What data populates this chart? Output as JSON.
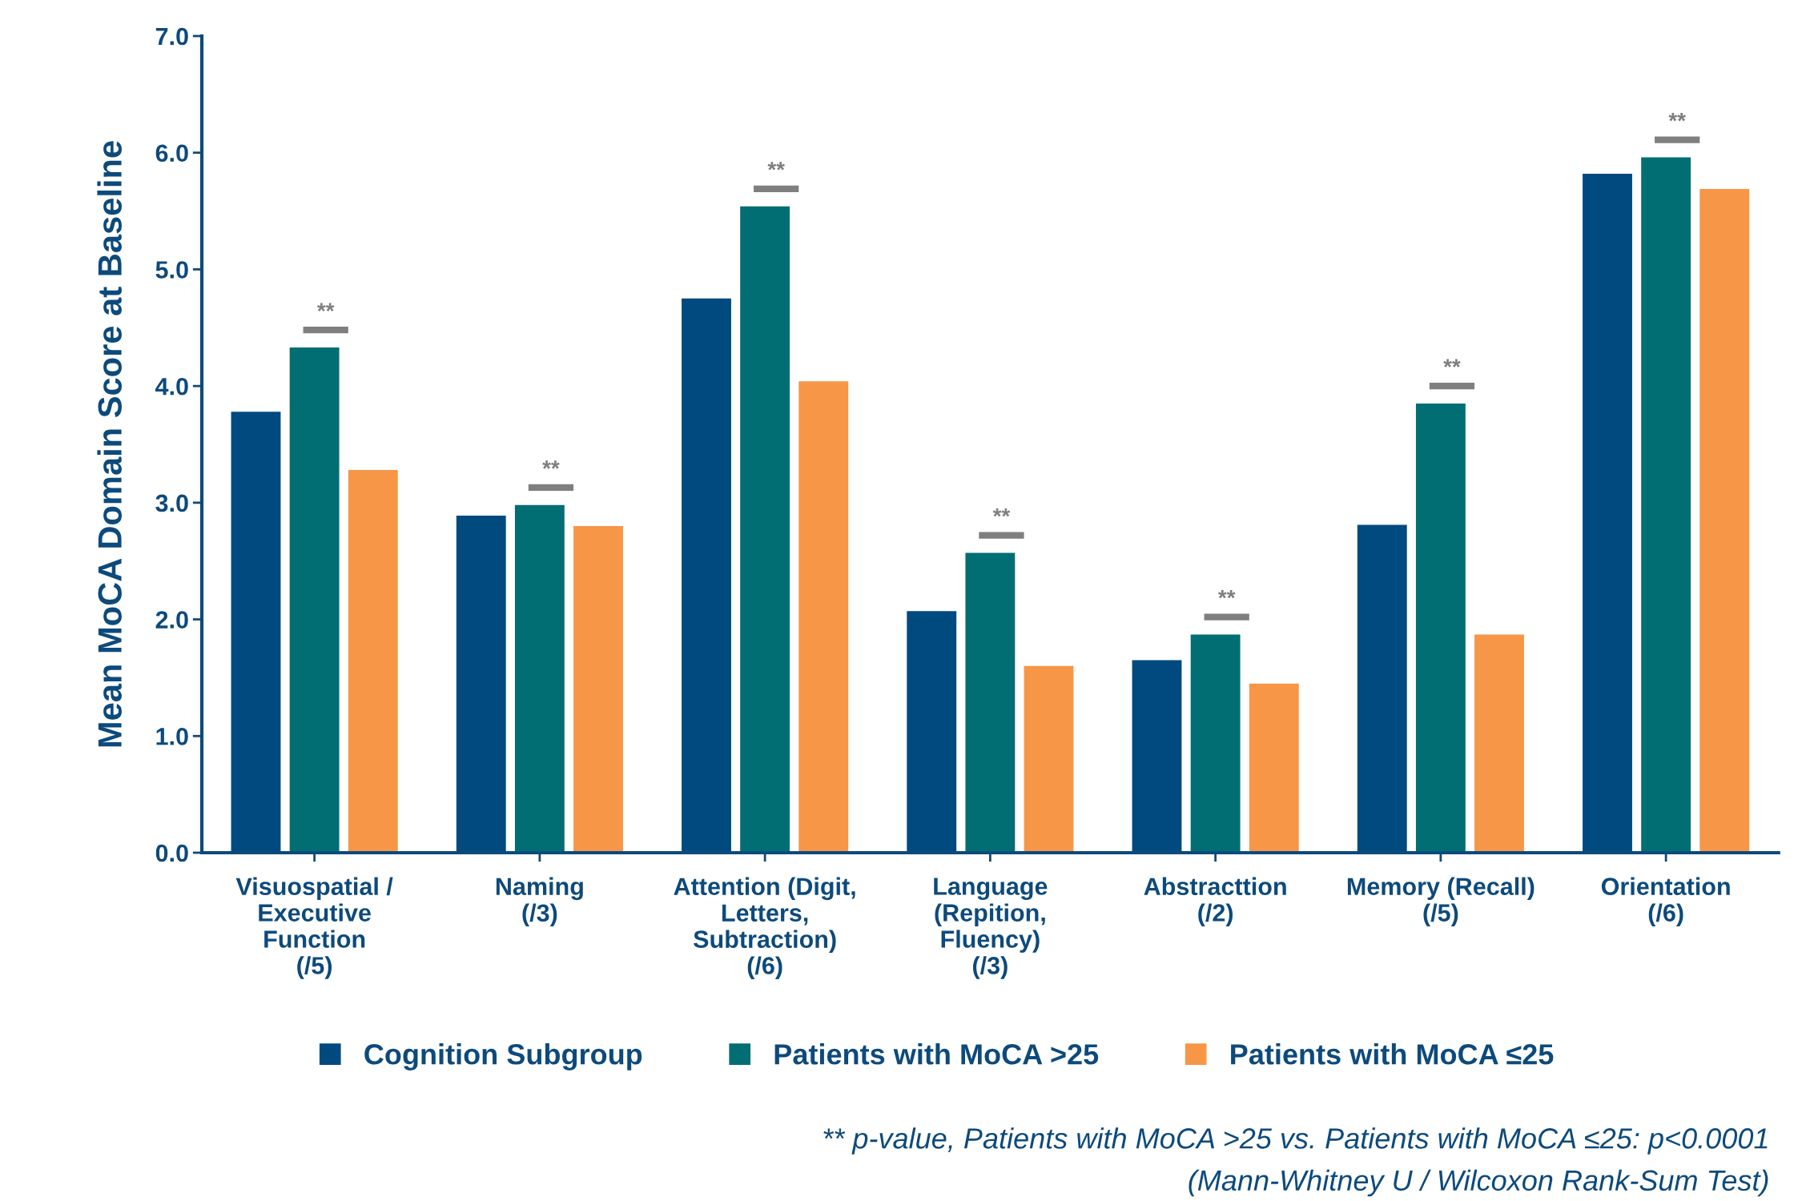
{
  "chart_data": {
    "type": "bar",
    "ylabel": "Mean MoCA Domain Score at Baseline",
    "categories": [
      "Visuospatial /\nExecutive\nFunction\n(/5)",
      "Naming\n(/3)",
      "Attention (Digit,\nLetters,\nSubtraction)\n(/6)",
      "Language\n(Repition,\nFluency)\n(/3)",
      "Abstracttion\n(/2)",
      "Memory (Recall)\n(/5)",
      "Orientation\n(/6)"
    ],
    "series": [
      {
        "name": "Cognition Subgroup",
        "color": "#004a80",
        "values": [
          3.78,
          2.89,
          4.75,
          2.07,
          1.65,
          2.81,
          5.82
        ]
      },
      {
        "name": "Patients with MoCA >25",
        "color": "#006e73",
        "values": [
          4.33,
          2.98,
          5.54,
          2.57,
          1.87,
          3.85,
          5.96
        ]
      },
      {
        "name": "Patients with MoCA ≤25",
        "color": "#f79646",
        "values": [
          3.28,
          2.8,
          4.04,
          1.6,
          1.45,
          1.87,
          5.69
        ]
      }
    ],
    "ylim": [
      0,
      7
    ],
    "yticks": [
      {
        "value": 0,
        "label": "0.0"
      },
      {
        "value": 1,
        "label": "1.0"
      },
      {
        "value": 2,
        "label": "2.0"
      },
      {
        "value": 3,
        "label": "3.0"
      },
      {
        "value": 4,
        "label": "4.0"
      },
      {
        "value": 5,
        "label": "5.0"
      },
      {
        "value": 6,
        "label": "6.0"
      },
      {
        "value": 7,
        "label": "7.0"
      }
    ],
    "grid": false,
    "legend": "bottom",
    "annotations": [
      "**",
      "**",
      "**",
      "**",
      "**",
      "**",
      "**",
      "** p-value, Patients with MoCA >25 vs. Patients with MoCA ≤25: p<0.0001",
      "(Mann-Whitney U / Wilcoxon Rank-Sum Test)"
    ]
  }
}
